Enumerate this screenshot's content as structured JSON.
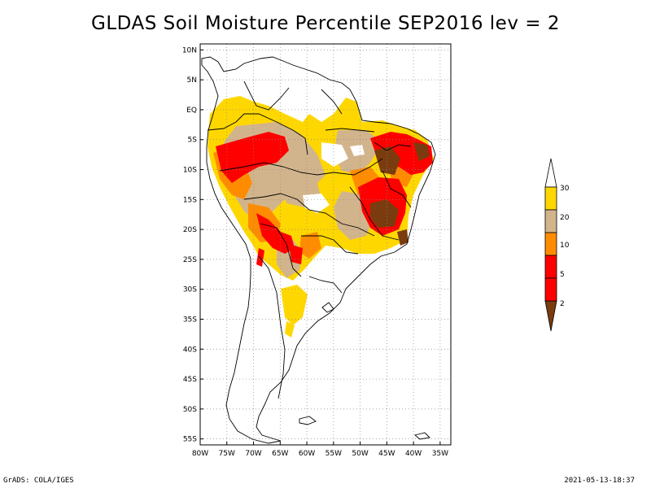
{
  "title": "GLDAS Soil Moisture Percentile SEP2016 lev = 2",
  "footer": {
    "left": "GrADS: COLA/IGES",
    "right": "2021-05-13-18:37"
  },
  "axes": {
    "lon_labels": [
      "80W",
      "75W",
      "70W",
      "65W",
      "60W",
      "55W",
      "50W",
      "45W",
      "40W",
      "35W"
    ],
    "lat_labels": [
      "10N",
      "5N",
      "EQ",
      "5S",
      "10S",
      "15S",
      "20S",
      "25S",
      "30S",
      "35S",
      "40S",
      "45S",
      "50S",
      "55S"
    ],
    "lon_range": [
      -80,
      -33
    ],
    "lat_range": [
      -56,
      11
    ]
  },
  "legend": {
    "labels": [
      "2",
      "5",
      "10",
      "20",
      "30"
    ],
    "colors": [
      "#7a3c0e",
      "#ff0000",
      "#ff8c00",
      "#d2b48c",
      "#ffd700",
      "#ffffff"
    ]
  }
}
